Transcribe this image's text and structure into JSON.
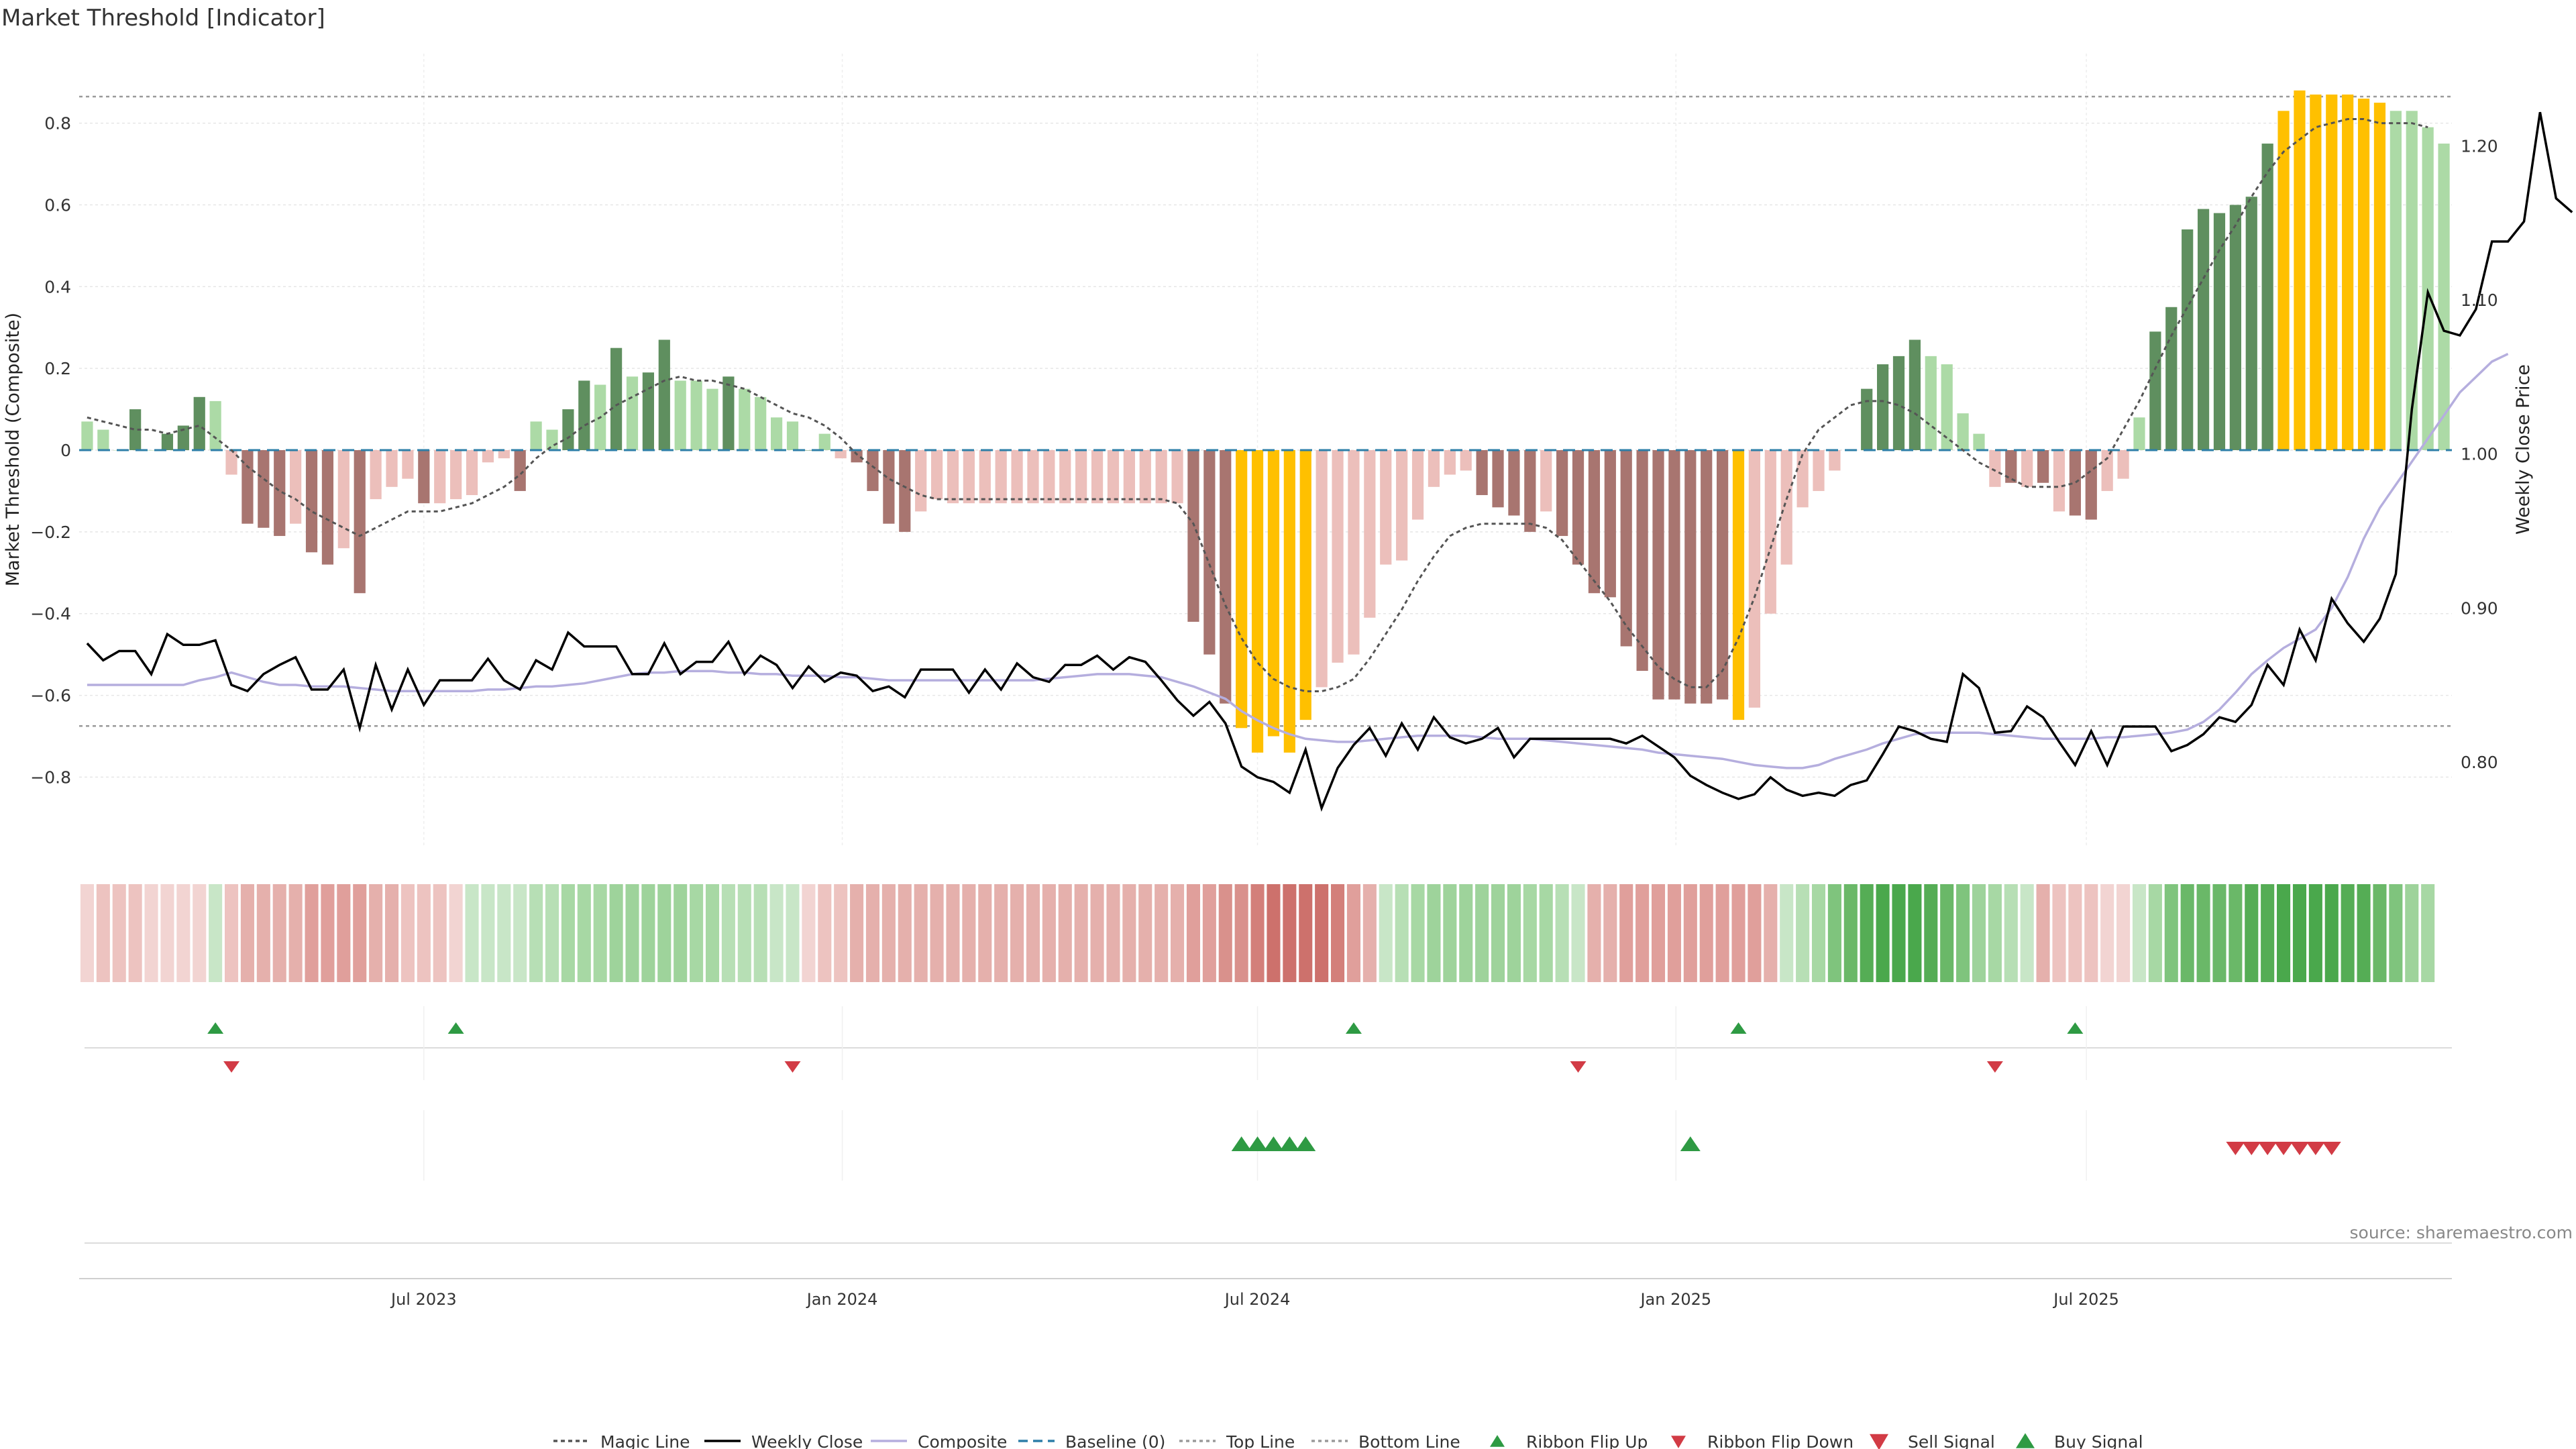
{
  "title": "Market Threshold [Indicator]",
  "source": "source: sharemaestro.com",
  "colors": {
    "pos_strong": "#5f8f5f",
    "pos_weak": "#acdaa6",
    "neg_strong": "#a87570",
    "neg_weak": "#ecbfbb",
    "extreme": "#ffc000",
    "close_line": "#000000",
    "composite_line": "#b5aede",
    "magic_line": "#555555",
    "baseline": "#2e7fa8",
    "threshold_line": "#9a9a9a",
    "buy": "#2e9a43",
    "sell": "#d23b45"
  },
  "chart_data": {
    "type": "bar",
    "title": "Market Threshold [Indicator]",
    "ylabel": "Market Threshold (Composite)",
    "y2label": "Weekly Close Price",
    "ylim": [
      -0.97,
      0.97
    ],
    "y2lim": [
      0.745,
      1.26
    ],
    "yticks": [
      "0.8",
      "0.6",
      "0.4",
      "0.2",
      "0",
      "−0.2",
      "−0.4",
      "−0.6",
      "−0.8"
    ],
    "ytick_values": [
      0.8,
      0.6,
      0.4,
      0.2,
      0,
      -0.2,
      -0.4,
      -0.6,
      -0.8
    ],
    "y2ticks": [
      "1.20",
      "1.10",
      "1.00",
      "0.90",
      "0.80"
    ],
    "y2tick_values": [
      1.2,
      1.1,
      1.0,
      0.9,
      0.8
    ],
    "xticks": [
      "Jul 2023",
      "Jan 2024",
      "Jul 2024",
      "Jan 2025",
      "Jul 2025"
    ],
    "xtick_weeks": [
      21.0,
      47.1,
      73.0,
      99.1,
      124.7
    ],
    "top_line": 0.865,
    "bottom_line": -0.675,
    "legend": [
      "Magic Line",
      "Weekly Close",
      "Composite",
      "Baseline (0)",
      "Top Line",
      "Bottom Line",
      "Ribbon Flip Up",
      "Ribbon Flip Down",
      "Sell Signal",
      "Buy Signal"
    ],
    "legend_position": "bottom-center",
    "grid": true,
    "composite_bars": [
      0.07,
      0.05,
      0.0,
      0.1,
      0.0,
      0.04,
      0.06,
      0.13,
      0.12,
      -0.06,
      -0.18,
      -0.19,
      -0.21,
      -0.18,
      -0.25,
      -0.28,
      -0.24,
      -0.35,
      -0.12,
      -0.09,
      -0.07,
      -0.13,
      -0.13,
      -0.12,
      -0.11,
      -0.03,
      -0.02,
      -0.1,
      0.07,
      0.05,
      0.1,
      0.17,
      0.16,
      0.25,
      0.18,
      0.19,
      0.27,
      0.17,
      0.17,
      0.15,
      0.18,
      0.15,
      0.13,
      0.08,
      0.07,
      0.0,
      0.04,
      -0.02,
      -0.03,
      -0.1,
      -0.18,
      -0.2,
      -0.15,
      -0.12,
      -0.13,
      -0.13,
      -0.13,
      -0.13,
      -0.13,
      -0.13,
      -0.13,
      -0.13,
      -0.13,
      -0.13,
      -0.13,
      -0.13,
      -0.13,
      -0.13,
      -0.13,
      -0.42,
      -0.5,
      -0.62,
      -0.68,
      -0.74,
      -0.7,
      -0.74,
      -0.66,
      -0.58,
      -0.52,
      -0.5,
      -0.41,
      -0.28,
      -0.27,
      -0.17,
      -0.09,
      -0.06,
      -0.05,
      -0.11,
      -0.14,
      -0.16,
      -0.2,
      -0.15,
      -0.21,
      -0.28,
      -0.35,
      -0.36,
      -0.48,
      -0.54,
      -0.61,
      -0.61,
      -0.62,
      -0.62,
      -0.61,
      -0.66,
      -0.63,
      -0.4,
      -0.28,
      -0.14,
      -0.1,
      -0.05,
      0.0,
      0.15,
      0.21,
      0.23,
      0.27,
      0.23,
      0.21,
      0.09,
      0.04,
      -0.09,
      -0.08,
      -0.09,
      -0.08,
      -0.15,
      -0.16,
      -0.17,
      -0.1,
      -0.07,
      0.08,
      0.29,
      0.35,
      0.54,
      0.59,
      0.58,
      0.6,
      0.62,
      0.75,
      0.83,
      0.88,
      0.87,
      0.87,
      0.87,
      0.86,
      0.85,
      0.83,
      0.83,
      0.79,
      0.75
    ],
    "bar_class": [
      "W",
      "W",
      "W",
      "S",
      "W",
      "S",
      "S",
      "S",
      "W",
      "W",
      "S",
      "S",
      "S",
      "W",
      "S",
      "S",
      "W",
      "S",
      "W",
      "W",
      "W",
      "S",
      "W",
      "W",
      "W",
      "W",
      "W",
      "S",
      "W",
      "W",
      "S",
      "S",
      "W",
      "S",
      "W",
      "S",
      "S",
      "W",
      "W",
      "W",
      "S",
      "W",
      "W",
      "W",
      "W",
      "S",
      "W",
      "W",
      "S",
      "S",
      "S",
      "S",
      "W",
      "W",
      "W",
      "W",
      "W",
      "W",
      "W",
      "W",
      "W",
      "W",
      "W",
      "W",
      "W",
      "W",
      "W",
      "W",
      "W",
      "S",
      "S",
      "S",
      "X",
      "X",
      "X",
      "X",
      "X",
      "W",
      "W",
      "W",
      "W",
      "W",
      "W",
      "W",
      "W",
      "W",
      "W",
      "S",
      "S",
      "S",
      "S",
      "W",
      "S",
      "S",
      "S",
      "S",
      "S",
      "S",
      "S",
      "S",
      "S",
      "S",
      "S",
      "X",
      "W",
      "W",
      "W",
      "W",
      "W",
      "W",
      "S",
      "S",
      "S",
      "S",
      "S",
      "W",
      "W",
      "W",
      "W",
      "W",
      "S",
      "W",
      "S",
      "W",
      "S",
      "S",
      "W",
      "W",
      "W",
      "S",
      "S",
      "S",
      "S",
      "S",
      "S",
      "S",
      "S",
      "X",
      "X",
      "X",
      "X",
      "X",
      "X",
      "X",
      "W",
      "W"
    ],
    "magic_line": [
      0.08,
      0.07,
      0.06,
      0.05,
      0.05,
      0.04,
      0.05,
      0.06,
      0.03,
      0.0,
      -0.04,
      -0.07,
      -0.1,
      -0.12,
      -0.15,
      -0.17,
      -0.19,
      -0.21,
      -0.19,
      -0.17,
      -0.15,
      -0.15,
      -0.15,
      -0.14,
      -0.13,
      -0.11,
      -0.09,
      -0.06,
      -0.02,
      0.01,
      0.03,
      0.06,
      0.08,
      0.11,
      0.13,
      0.15,
      0.17,
      0.18,
      0.17,
      0.17,
      0.16,
      0.15,
      0.13,
      0.11,
      0.09,
      0.08,
      0.06,
      0.03,
      -0.01,
      -0.04,
      -0.07,
      -0.09,
      -0.11,
      -0.12,
      -0.12,
      -0.12,
      -0.12,
      -0.12,
      -0.12,
      -0.12,
      -0.12,
      -0.12,
      -0.12,
      -0.12,
      -0.12,
      -0.12,
      -0.12,
      -0.12,
      -0.13,
      -0.18,
      -0.28,
      -0.38,
      -0.46,
      -0.52,
      -0.56,
      -0.58,
      -0.59,
      -0.59,
      -0.58,
      -0.56,
      -0.51,
      -0.45,
      -0.39,
      -0.32,
      -0.26,
      -0.21,
      -0.19,
      -0.18,
      -0.18,
      -0.18,
      -0.18,
      -0.19,
      -0.22,
      -0.27,
      -0.32,
      -0.37,
      -0.43,
      -0.48,
      -0.53,
      -0.56,
      -0.58,
      -0.58,
      -0.54,
      -0.46,
      -0.36,
      -0.24,
      -0.12,
      -0.01,
      0.05,
      0.08,
      0.11,
      0.12,
      0.12,
      0.11,
      0.09,
      0.06,
      0.03,
      0.0,
      -0.03,
      -0.05,
      -0.07,
      -0.09,
      -0.09,
      -0.09,
      -0.08,
      -0.05,
      -0.02,
      0.05,
      0.12,
      0.2,
      0.28,
      0.35,
      0.42,
      0.49,
      0.55,
      0.62,
      0.68,
      0.73,
      0.76,
      0.79,
      0.8,
      0.81,
      0.81,
      0.8,
      0.8,
      0.8,
      0.79
    ],
    "weekly_close": [
      0.877,
      0.866,
      0.872,
      0.872,
      0.857,
      0.883,
      0.876,
      0.876,
      0.879,
      0.85,
      0.846,
      0.857,
      0.863,
      0.868,
      0.847,
      0.847,
      0.86,
      0.822,
      0.863,
      0.834,
      0.86,
      0.837,
      0.853,
      0.853,
      0.853,
      0.867,
      0.853,
      0.847,
      0.866,
      0.86,
      0.884,
      0.875,
      0.875,
      0.875,
      0.857,
      0.857,
      0.877,
      0.857,
      0.865,
      0.865,
      0.878,
      0.857,
      0.869,
      0.863,
      0.848,
      0.862,
      0.852,
      0.858,
      0.856,
      0.846,
      0.849,
      0.842,
      0.86,
      0.86,
      0.86,
      0.845,
      0.86,
      0.847,
      0.864,
      0.855,
      0.852,
      0.863,
      0.863,
      0.869,
      0.86,
      0.868,
      0.865,
      0.853,
      0.84,
      0.83,
      0.839,
      0.825,
      0.797,
      0.79,
      0.787,
      0.78,
      0.808,
      0.77,
      0.796,
      0.811,
      0.822,
      0.804,
      0.825,
      0.808,
      0.829,
      0.816,
      0.812,
      0.815,
      0.822,
      0.803,
      0.815,
      0.815,
      0.815,
      0.815,
      0.815,
      0.815,
      0.812,
      0.817,
      0.81,
      0.803,
      0.791,
      0.785,
      0.78,
      0.776,
      0.779,
      0.79,
      0.782,
      0.778,
      0.78,
      0.778,
      0.785,
      0.788,
      0.805,
      0.823,
      0.82,
      0.815,
      0.813,
      0.857,
      0.848,
      0.819,
      0.82,
      0.836,
      0.829,
      0.813,
      0.798,
      0.82,
      0.798,
      0.823,
      0.823,
      0.823,
      0.807,
      0.811,
      0.818,
      0.829,
      0.826,
      0.837,
      0.863,
      0.85,
      0.886,
      0.866,
      0.906,
      0.89,
      0.878,
      0.893,
      0.922,
      1.029,
      1.105,
      1.08,
      1.077,
      1.094,
      1.138,
      1.138,
      1.151,
      1.222,
      1.166,
      1.157
    ],
    "composite_line": [
      0.85,
      0.85,
      0.85,
      0.85,
      0.85,
      0.85,
      0.85,
      0.853,
      0.855,
      0.858,
      0.855,
      0.852,
      0.85,
      0.85,
      0.849,
      0.849,
      0.849,
      0.848,
      0.847,
      0.846,
      0.846,
      0.846,
      0.846,
      0.846,
      0.846,
      0.847,
      0.847,
      0.848,
      0.849,
      0.849,
      0.85,
      0.851,
      0.853,
      0.855,
      0.857,
      0.858,
      0.858,
      0.859,
      0.859,
      0.859,
      0.858,
      0.858,
      0.857,
      0.857,
      0.856,
      0.856,
      0.856,
      0.855,
      0.855,
      0.854,
      0.853,
      0.853,
      0.853,
      0.853,
      0.853,
      0.853,
      0.853,
      0.853,
      0.853,
      0.853,
      0.854,
      0.855,
      0.856,
      0.857,
      0.857,
      0.857,
      0.856,
      0.855,
      0.852,
      0.849,
      0.845,
      0.841,
      0.833,
      0.827,
      0.822,
      0.818,
      0.815,
      0.814,
      0.813,
      0.813,
      0.814,
      0.815,
      0.816,
      0.817,
      0.817,
      0.817,
      0.817,
      0.816,
      0.815,
      0.815,
      0.815,
      0.814,
      0.813,
      0.812,
      0.811,
      0.81,
      0.809,
      0.808,
      0.806,
      0.805,
      0.804,
      0.803,
      0.802,
      0.8,
      0.798,
      0.797,
      0.796,
      0.796,
      0.798,
      0.802,
      0.805,
      0.808,
      0.812,
      0.815,
      0.818,
      0.819,
      0.819,
      0.819,
      0.819,
      0.818,
      0.817,
      0.816,
      0.815,
      0.815,
      0.815,
      0.815,
      0.816,
      0.816,
      0.817,
      0.818,
      0.819,
      0.821,
      0.826,
      0.834,
      0.845,
      0.857,
      0.866,
      0.874,
      0.88,
      0.886,
      0.9,
      0.92,
      0.945,
      0.965,
      0.98,
      0.995,
      1.01,
      1.025,
      1.04,
      1.05,
      1.06,
      1.065
    ],
    "ribbon_colors": [
      "#f2d4d2",
      "#edc3c0",
      "#edc3c0",
      "#edc3c0",
      "#f2d4d2",
      "#f2d4d2",
      "#f2d4d2",
      "#f2d4d2",
      "#c8e6c7",
      "#edc3c0",
      "#e5b0ac",
      "#e5b0ac",
      "#e5b0ac",
      "#e5b0ac",
      "#e09f9b",
      "#e09f9b",
      "#e09f9b",
      "#e09f9b",
      "#e5b0ac",
      "#e5b0ac",
      "#edc3c0",
      "#edc3c0",
      "#edc3c0",
      "#f2d4d2",
      "#c8e6c7",
      "#c8e6c7",
      "#c8e6c7",
      "#c8e6c7",
      "#b7dfb5",
      "#b7dfb5",
      "#a7d8a4",
      "#a7d8a4",
      "#a7d8a4",
      "#9ed39b",
      "#9ed39b",
      "#9ed39b",
      "#9ed39b",
      "#9ed39b",
      "#a7d8a4",
      "#a7d8a4",
      "#b7dfb5",
      "#b7dfb5",
      "#b7dfb5",
      "#c8e6c7",
      "#c8e6c7",
      "#f2d4d2",
      "#edc3c0",
      "#edc3c0",
      "#e5b0ac",
      "#e5b0ac",
      "#e5b0ac",
      "#e5b0ac",
      "#e5b0ac",
      "#e5b0ac",
      "#e5b0ac",
      "#e5b0ac",
      "#e5b0ac",
      "#e5b0ac",
      "#e5b0ac",
      "#e5b0ac",
      "#e5b0ac",
      "#e5b0ac",
      "#e5b0ac",
      "#e5b0ac",
      "#e5b0ac",
      "#e5b0ac",
      "#e5b0ac",
      "#e5b0ac",
      "#e5b0ac",
      "#e09f9b",
      "#e09f9b",
      "#d9918c",
      "#d9918c",
      "#d37f7a",
      "#cd716c",
      "#cd716c",
      "#cd716c",
      "#cd716c",
      "#d37f7a",
      "#e09f9b",
      "#e5b0ac",
      "#c8e6c7",
      "#b7dfb5",
      "#a7d8a4",
      "#9ed39b",
      "#9ed39b",
      "#9ed39b",
      "#9ed39b",
      "#9ed39b",
      "#9ed39b",
      "#a7d8a4",
      "#a7d8a4",
      "#b7dfb5",
      "#c8e6c7",
      "#e5b0ac",
      "#e5b0ac",
      "#e09f9b",
      "#e09f9b",
      "#e09f9b",
      "#e09f9b",
      "#e09f9b",
      "#e09f9b",
      "#e09f9b",
      "#e09f9b",
      "#e09f9b",
      "#e5b0ac",
      "#c8e6c7",
      "#b7dfb5",
      "#a7d8a4",
      "#7fc47d",
      "#6ab868",
      "#55ad55",
      "#4aa84c",
      "#4aa84c",
      "#4aa84c",
      "#55ad55",
      "#6ab868",
      "#7fc47d",
      "#9ed39b",
      "#a7d8a4",
      "#b7dfb5",
      "#c8e6c7",
      "#e5b0ac",
      "#edc3c0",
      "#edc3c0",
      "#edc3c0",
      "#f2d4d2",
      "#f2d4d2",
      "#c8e6c7",
      "#a7d8a4",
      "#7fc47d",
      "#6ab868",
      "#6ab868",
      "#6ab868",
      "#6ab868",
      "#55ad55",
      "#55ad55",
      "#4aa84c",
      "#4aa84c",
      "#4aa84c",
      "#4aa84c",
      "#55ad55",
      "#55ad55",
      "#6ab868",
      "#7fc47d",
      "#9ed39b",
      "#a7d8a4"
    ],
    "ribbon_flip_up_weeks": [
      8,
      23,
      79,
      103,
      124
    ],
    "ribbon_flip_down_weeks": [
      9,
      44,
      93,
      119
    ],
    "buy_signal_weeks": [
      72,
      73,
      74,
      75,
      76,
      100
    ],
    "sell_signal_weeks": [
      134,
      135,
      136,
      137,
      138,
      139,
      140
    ]
  }
}
